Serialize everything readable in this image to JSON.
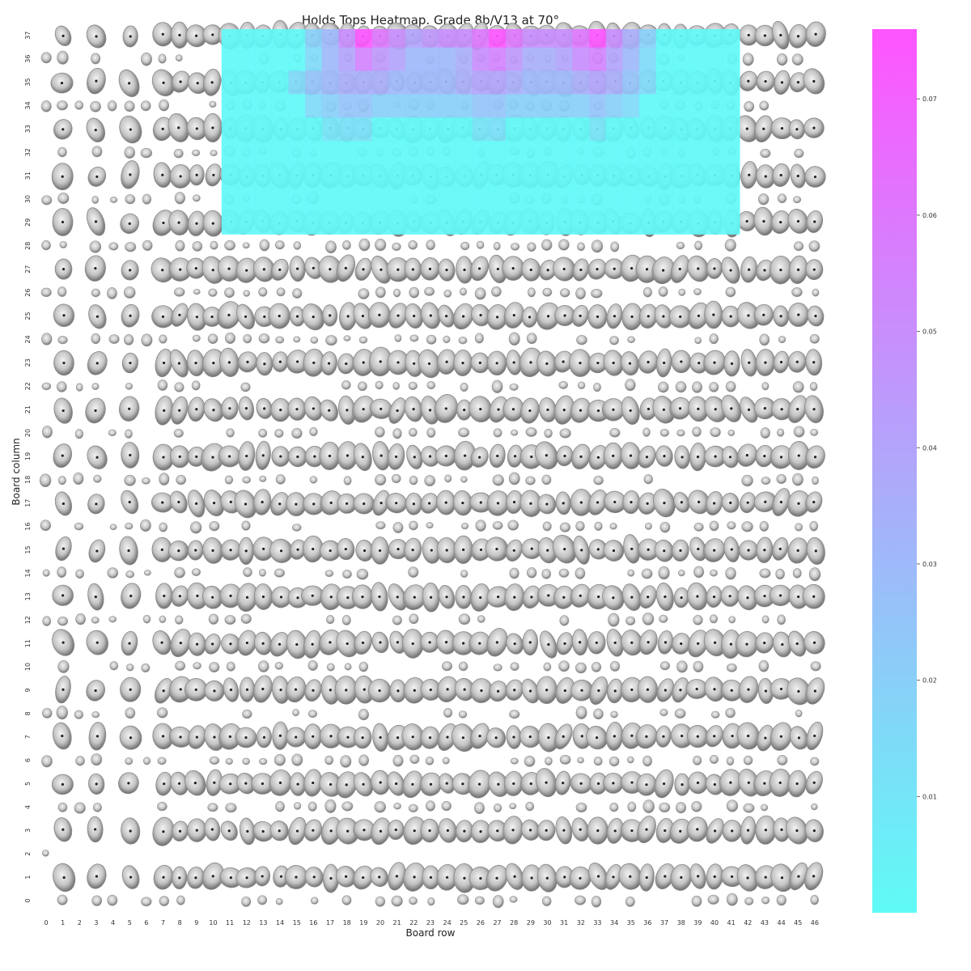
{
  "chart_data": {
    "type": "heatmap",
    "title": "Holds Tops Heatmap. Grade 8b/V13 at 70°",
    "xlabel": "Board row",
    "ylabel": "Board column",
    "x_ticks": [
      "0",
      "1",
      "2",
      "3",
      "4",
      "5",
      "6",
      "7",
      "8",
      "9",
      "10",
      "11",
      "12",
      "13",
      "14",
      "15",
      "16",
      "17",
      "18",
      "19",
      "20",
      "21",
      "22",
      "23",
      "24",
      "25",
      "26",
      "27",
      "28",
      "29",
      "30",
      "31",
      "32",
      "33",
      "34",
      "35",
      "36",
      "37",
      "38",
      "39",
      "40",
      "41",
      "42",
      "43",
      "44",
      "45",
      "46"
    ],
    "y_ticks": [
      "0",
      "1",
      "2",
      "3",
      "4",
      "5",
      "6",
      "7",
      "8",
      "9",
      "10",
      "11",
      "12",
      "13",
      "14",
      "15",
      "16",
      "17",
      "18",
      "19",
      "20",
      "21",
      "22",
      "23",
      "24",
      "25",
      "26",
      "27",
      "28",
      "29",
      "30",
      "31",
      "32",
      "33",
      "34",
      "35",
      "36",
      "37"
    ],
    "xlim": [
      0,
      46
    ],
    "ylim": [
      0,
      37
    ],
    "heat_region": {
      "x_range": [
        11,
        41
      ],
      "y_range": [
        29,
        37
      ]
    },
    "default_value": 0.001,
    "hotspots": [
      {
        "x": 18,
        "y": 37,
        "value": 0.05
      },
      {
        "x": 19,
        "y": 37,
        "value": 0.075
      },
      {
        "x": 20,
        "y": 37,
        "value": 0.06
      },
      {
        "x": 21,
        "y": 37,
        "value": 0.05
      },
      {
        "x": 22,
        "y": 37,
        "value": 0.04
      },
      {
        "x": 23,
        "y": 37,
        "value": 0.045
      },
      {
        "x": 24,
        "y": 37,
        "value": 0.05
      },
      {
        "x": 25,
        "y": 37,
        "value": 0.05
      },
      {
        "x": 26,
        "y": 37,
        "value": 0.06
      },
      {
        "x": 27,
        "y": 37,
        "value": 0.075
      },
      {
        "x": 28,
        "y": 37,
        "value": 0.06
      },
      {
        "x": 29,
        "y": 37,
        "value": 0.05
      },
      {
        "x": 30,
        "y": 37,
        "value": 0.05
      },
      {
        "x": 31,
        "y": 37,
        "value": 0.05
      },
      {
        "x": 32,
        "y": 37,
        "value": 0.06
      },
      {
        "x": 33,
        "y": 37,
        "value": 0.075
      },
      {
        "x": 34,
        "y": 37,
        "value": 0.05
      },
      {
        "x": 35,
        "y": 37,
        "value": 0.035
      },
      {
        "x": 17,
        "y": 37,
        "value": 0.03
      },
      {
        "x": 16,
        "y": 37,
        "value": 0.02
      },
      {
        "x": 36,
        "y": 37,
        "value": 0.02
      },
      {
        "x": 18,
        "y": 36,
        "value": 0.04
      },
      {
        "x": 19,
        "y": 36,
        "value": 0.055
      },
      {
        "x": 20,
        "y": 36,
        "value": 0.045
      },
      {
        "x": 21,
        "y": 36,
        "value": 0.04
      },
      {
        "x": 26,
        "y": 36,
        "value": 0.05
      },
      {
        "x": 27,
        "y": 36,
        "value": 0.055
      },
      {
        "x": 28,
        "y": 36,
        "value": 0.045
      },
      {
        "x": 32,
        "y": 36,
        "value": 0.05
      },
      {
        "x": 33,
        "y": 36,
        "value": 0.055
      },
      {
        "x": 34,
        "y": 36,
        "value": 0.04
      },
      {
        "x": 22,
        "y": 36,
        "value": 0.03
      },
      {
        "x": 23,
        "y": 36,
        "value": 0.03
      },
      {
        "x": 24,
        "y": 36,
        "value": 0.03
      },
      {
        "x": 25,
        "y": 36,
        "value": 0.035
      },
      {
        "x": 29,
        "y": 36,
        "value": 0.035
      },
      {
        "x": 30,
        "y": 36,
        "value": 0.035
      },
      {
        "x": 31,
        "y": 36,
        "value": 0.04
      },
      {
        "x": 35,
        "y": 36,
        "value": 0.03
      },
      {
        "x": 17,
        "y": 36,
        "value": 0.03
      },
      {
        "x": 16,
        "y": 36,
        "value": 0.015
      },
      {
        "x": 36,
        "y": 36,
        "value": 0.015
      },
      {
        "x": 15,
        "y": 35,
        "value": 0.015
      },
      {
        "x": 16,
        "y": 35,
        "value": 0.025
      },
      {
        "x": 17,
        "y": 35,
        "value": 0.03
      },
      {
        "x": 18,
        "y": 35,
        "value": 0.035
      },
      {
        "x": 19,
        "y": 35,
        "value": 0.035
      },
      {
        "x": 20,
        "y": 35,
        "value": 0.035
      },
      {
        "x": 21,
        "y": 35,
        "value": 0.03
      },
      {
        "x": 22,
        "y": 35,
        "value": 0.03
      },
      {
        "x": 23,
        "y": 35,
        "value": 0.03
      },
      {
        "x": 24,
        "y": 35,
        "value": 0.03
      },
      {
        "x": 25,
        "y": 35,
        "value": 0.035
      },
      {
        "x": 26,
        "y": 35,
        "value": 0.04
      },
      {
        "x": 27,
        "y": 35,
        "value": 0.04
      },
      {
        "x": 28,
        "y": 35,
        "value": 0.035
      },
      {
        "x": 29,
        "y": 35,
        "value": 0.03
      },
      {
        "x": 30,
        "y": 35,
        "value": 0.03
      },
      {
        "x": 31,
        "y": 35,
        "value": 0.03
      },
      {
        "x": 32,
        "y": 35,
        "value": 0.035
      },
      {
        "x": 33,
        "y": 35,
        "value": 0.04
      },
      {
        "x": 34,
        "y": 35,
        "value": 0.035
      },
      {
        "x": 35,
        "y": 35,
        "value": 0.025
      },
      {
        "x": 36,
        "y": 35,
        "value": 0.015
      },
      {
        "x": 16,
        "y": 34,
        "value": 0.015
      },
      {
        "x": 17,
        "y": 34,
        "value": 0.02
      },
      {
        "x": 18,
        "y": 34,
        "value": 0.025
      },
      {
        "x": 19,
        "y": 34,
        "value": 0.025
      },
      {
        "x": 20,
        "y": 34,
        "value": 0.02
      },
      {
        "x": 21,
        "y": 34,
        "value": 0.02
      },
      {
        "x": 22,
        "y": 34,
        "value": 0.02
      },
      {
        "x": 23,
        "y": 34,
        "value": 0.02
      },
      {
        "x": 24,
        "y": 34,
        "value": 0.02
      },
      {
        "x": 25,
        "y": 34,
        "value": 0.02
      },
      {
        "x": 26,
        "y": 34,
        "value": 0.025
      },
      {
        "x": 27,
        "y": 34,
        "value": 0.025
      },
      {
        "x": 28,
        "y": 34,
        "value": 0.02
      },
      {
        "x": 29,
        "y": 34,
        "value": 0.02
      },
      {
        "x": 30,
        "y": 34,
        "value": 0.02
      },
      {
        "x": 31,
        "y": 34,
        "value": 0.02
      },
      {
        "x": 32,
        "y": 34,
        "value": 0.02
      },
      {
        "x": 33,
        "y": 34,
        "value": 0.025
      },
      {
        "x": 34,
        "y": 34,
        "value": 0.02
      },
      {
        "x": 35,
        "y": 34,
        "value": 0.015
      },
      {
        "x": 17,
        "y": 33,
        "value": 0.01
      },
      {
        "x": 18,
        "y": 33,
        "value": 0.012
      },
      {
        "x": 19,
        "y": 33,
        "value": 0.012
      },
      {
        "x": 26,
        "y": 33,
        "value": 0.01
      },
      {
        "x": 27,
        "y": 33,
        "value": 0.012
      },
      {
        "x": 33,
        "y": 33,
        "value": 0.01
      }
    ],
    "colorbar": {
      "min": 0.0,
      "max": 0.076,
      "ticks": [
        "0.01",
        "0.02",
        "0.03",
        "0.04",
        "0.05",
        "0.06",
        "0.07"
      ],
      "colors": [
        "#5ffbf6",
        "#ff55ff"
      ]
    },
    "hold_colors": [
      "#c8c8c8",
      "#6e6e6e"
    ]
  }
}
